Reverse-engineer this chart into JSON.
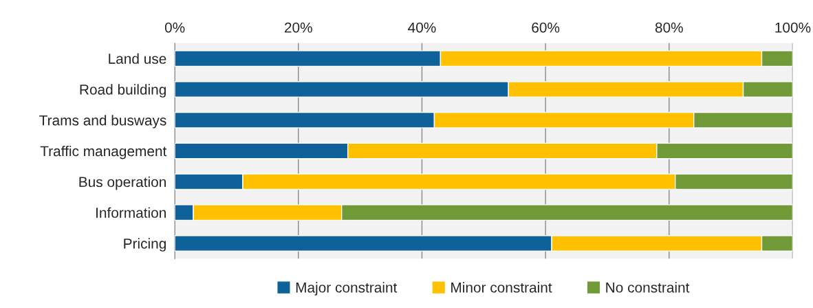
{
  "chart_data": {
    "type": "bar",
    "orientation": "horizontal",
    "stacked": true,
    "categories": [
      "Land use",
      "Road building",
      "Trams and busways",
      "Traffic management",
      "Bus operation",
      "Information",
      "Pricing"
    ],
    "series": [
      {
        "name": "Major constraint",
        "color": "#0f6199",
        "values": [
          43,
          54,
          42,
          28,
          11,
          3,
          61
        ]
      },
      {
        "name": "Minor constraint",
        "color": "#ffc000",
        "values": [
          52,
          38,
          42,
          50,
          70,
          24,
          34
        ]
      },
      {
        "name": "No constraint",
        "color": "#6f9a37",
        "values": [
          5,
          8,
          16,
          22,
          19,
          73,
          5
        ]
      }
    ],
    "xlim": [
      0,
      100
    ],
    "xticks": [
      {
        "value": 0,
        "label": "0%"
      },
      {
        "value": 20,
        "label": "20%"
      },
      {
        "value": 40,
        "label": "40%"
      },
      {
        "value": 60,
        "label": "60%"
      },
      {
        "value": 80,
        "label": "80%"
      },
      {
        "value": 100,
        "label": "100%"
      }
    ],
    "grid": "x",
    "legend": "bottom"
  }
}
